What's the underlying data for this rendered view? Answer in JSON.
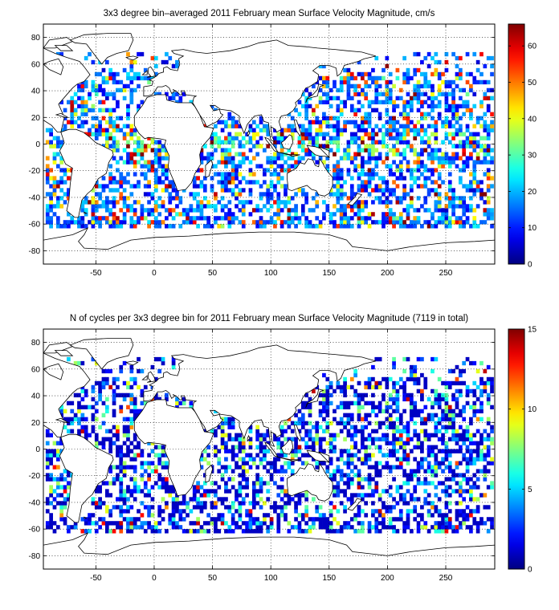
{
  "chart_data": [
    {
      "type": "heatmap",
      "title": "3x3 degree bin–averaged 2011 February mean Surface Velocity Magnitude, cm/s",
      "xlim": [
        -95,
        292
      ],
      "ylim": [
        -90,
        90
      ],
      "xticks": [
        -50,
        0,
        50,
        100,
        150,
        200,
        250
      ],
      "yticks": [
        80,
        60,
        40,
        20,
        0,
        -20,
        -40,
        -60,
        -80
      ],
      "grid": true,
      "colorbar": {
        "colormap": "jet",
        "range": [
          0,
          66
        ],
        "ticks": [
          0,
          10,
          20,
          30,
          40,
          50,
          60
        ]
      }
    },
    {
      "type": "heatmap",
      "title": "N of cycles per 3x3 degree bin for 2011 February mean Surface Velocity Magnitude (7119 in total)",
      "xlim": [
        -95,
        292
      ],
      "ylim": [
        -90,
        90
      ],
      "xticks": [
        -50,
        0,
        50,
        100,
        150,
        200,
        250
      ],
      "yticks": [
        80,
        60,
        40,
        20,
        0,
        -20,
        -40,
        -60,
        -80
      ],
      "grid": true,
      "colorbar": {
        "colormap": "jet",
        "range": [
          0,
          15
        ],
        "ticks": [
          0,
          5,
          10,
          15
        ]
      }
    }
  ]
}
